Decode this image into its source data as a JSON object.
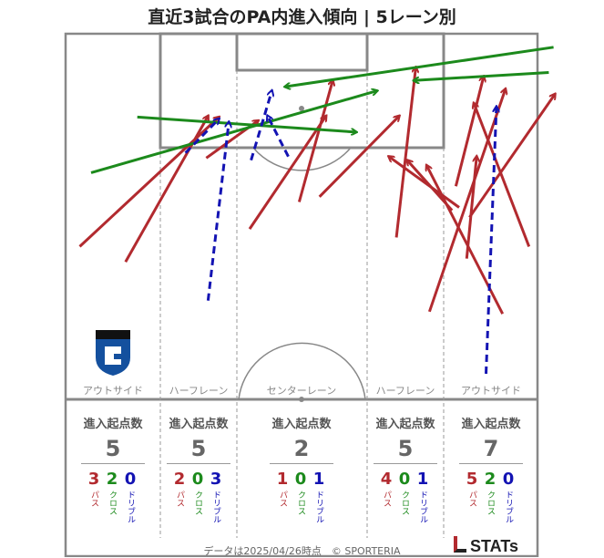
{
  "title": "直近3試合のPA内進入傾向 | 5レーン別",
  "colors": {
    "pass": "#b22a2f",
    "cross": "#1c8a1c",
    "dribble": "#1313b3",
    "lines": "#888888"
  },
  "lanes": [
    {
      "label": "アウトサイド",
      "head": "進入起点数",
      "total": "5",
      "pass": "3",
      "cross": "2",
      "dribble": "0"
    },
    {
      "label": "ハーフレーン",
      "head": "進入起点数",
      "total": "5",
      "pass": "2",
      "cross": "0",
      "dribble": "3"
    },
    {
      "label": "センターレーン",
      "head": "進入起点数",
      "total": "2",
      "pass": "1",
      "cross": "0",
      "dribble": "1"
    },
    {
      "label": "ハーフレーン",
      "head": "進入起点数",
      "total": "5",
      "pass": "4",
      "cross": "0",
      "dribble": "1"
    },
    {
      "label": "アウトサイド",
      "head": "進入起点数",
      "total": "7",
      "pass": "5",
      "cross": "2",
      "dribble": "0"
    }
  ],
  "type_labels": {
    "pass": "パス",
    "cross": "クロス",
    "dribble": "ドリブル"
  },
  "crest": {
    "icon": "team-crest-icon"
  },
  "footer": "データは2025/04/26時点　© SPORTERIA",
  "brand": "STATs",
  "chart_data": {
    "type": "scatter",
    "description_units": "pitch coordinates: x 0-100 across width (left to right), y 0-100 depth from goal line (0) to halfway line (100)",
    "arrows": [
      {
        "kind": "pass",
        "from": [
          3.0,
          58.2
        ],
        "to": [
          32.5,
          22.8
        ]
      },
      {
        "kind": "pass",
        "from": [
          12.7,
          62.4
        ],
        "to": [
          30.2,
          22.5
        ]
      },
      {
        "kind": "pass",
        "from": [
          39.0,
          53.4
        ],
        "to": [
          55.2,
          22.5
        ]
      },
      {
        "kind": "pass",
        "from": [
          29.8,
          34.0
        ],
        "to": [
          40.8,
          23.8
        ]
      },
      {
        "kind": "pass",
        "from": [
          49.5,
          46.0
        ],
        "to": [
          56.6,
          12.8
        ]
      },
      {
        "kind": "pass",
        "from": [
          53.8,
          44.6
        ],
        "to": [
          70.7,
          22.5
        ]
      },
      {
        "kind": "pass",
        "from": [
          70.1,
          55.7
        ],
        "to": [
          74.2,
          9.2
        ]
      },
      {
        "kind": "pass",
        "from": [
          82.7,
          41.7
        ],
        "to": [
          88.6,
          11.7
        ]
      },
      {
        "kind": "pass",
        "from": [
          83.4,
          47.5
        ],
        "to": [
          68.5,
          33.6
        ]
      },
      {
        "kind": "pass",
        "from": [
          81.9,
          48.3
        ],
        "to": [
          72.4,
          34.6
        ]
      },
      {
        "kind": "pass",
        "from": [
          77.1,
          76.0
        ],
        "to": [
          93.2,
          15.1
        ]
      },
      {
        "kind": "pass",
        "from": [
          85.0,
          61.5
        ],
        "to": [
          87.1,
          33.6
        ]
      },
      {
        "kind": "pass",
        "from": [
          98.2,
          58.2
        ],
        "to": [
          86.5,
          19.0
        ]
      },
      {
        "kind": "pass",
        "from": [
          92.6,
          76.6
        ],
        "to": [
          76.5,
          36.0
        ]
      },
      {
        "kind": "pass",
        "from": [
          85.6,
          50.2
        ],
        "to": [
          103.7,
          16.5
        ]
      },
      {
        "kind": "cross",
        "from": [
          5.4,
          38.0
        ],
        "to": [
          66.0,
          15.6
        ]
      },
      {
        "kind": "cross",
        "from": [
          15.2,
          22.8
        ],
        "to": [
          61.6,
          26.9
        ]
      },
      {
        "kind": "cross",
        "from": [
          103.4,
          3.7
        ],
        "to": [
          46.5,
          14.5
        ]
      },
      {
        "kind": "cross",
        "from": [
          102.4,
          10.6
        ],
        "to": [
          73.8,
          12.8
        ]
      },
      {
        "kind": "dribble",
        "from": [
          30.2,
          73.0
        ],
        "to": [
          34.6,
          24.2
        ]
      },
      {
        "kind": "dribble",
        "from": [
          39.3,
          34.6
        ],
        "to": [
          43.7,
          15.6
        ]
      },
      {
        "kind": "dribble",
        "from": [
          47.2,
          33.6
        ],
        "to": [
          42.8,
          22.5
        ]
      },
      {
        "kind": "dribble",
        "from": [
          89.1,
          93.0
        ],
        "to": [
          91.3,
          20.0
        ]
      },
      {
        "kind": "dribble",
        "from": [
          25.4,
          32.6
        ],
        "to": [
          32.5,
          23.3
        ]
      }
    ]
  }
}
